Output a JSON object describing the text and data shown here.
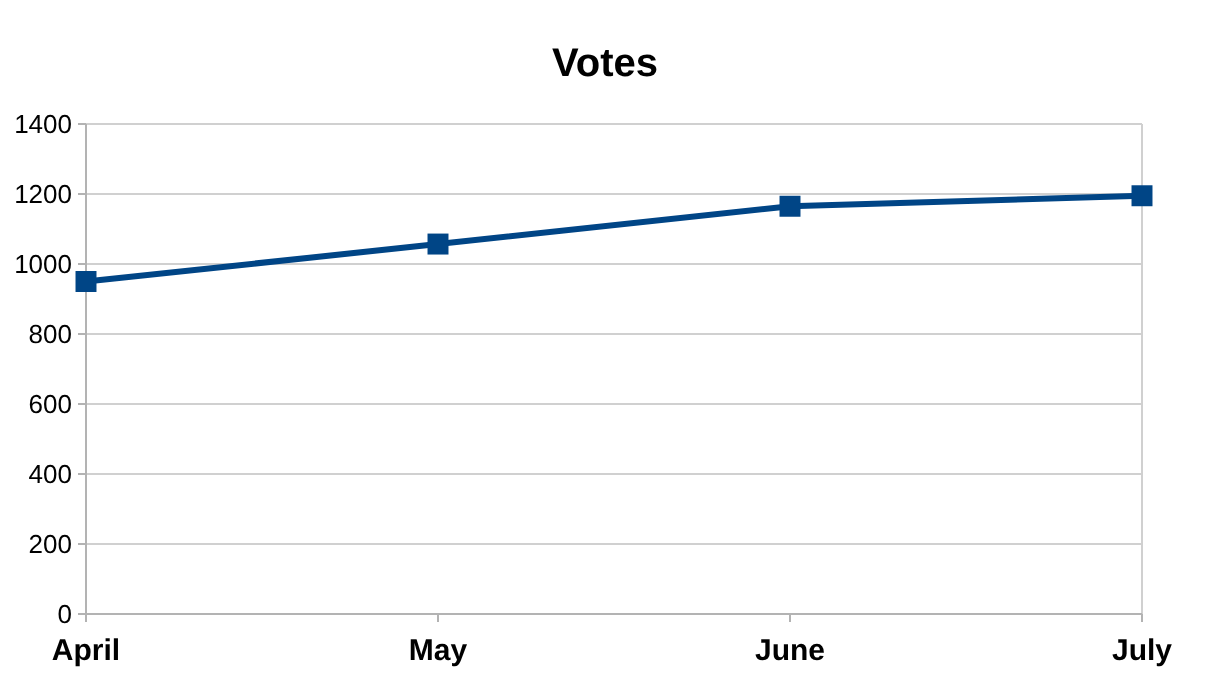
{
  "chart_data": {
    "type": "line",
    "title": "Votes",
    "categories": [
      "April",
      "May",
      "June",
      "July"
    ],
    "series": [
      {
        "color": "#004586",
        "values": [
          950,
          1057,
          1165,
          1195
        ]
      }
    ],
    "ylim": [
      0,
      1400
    ],
    "yticks": [
      0,
      200,
      400,
      600,
      800,
      1000,
      1200,
      1400
    ],
    "grid": "y",
    "marker": "square"
  }
}
